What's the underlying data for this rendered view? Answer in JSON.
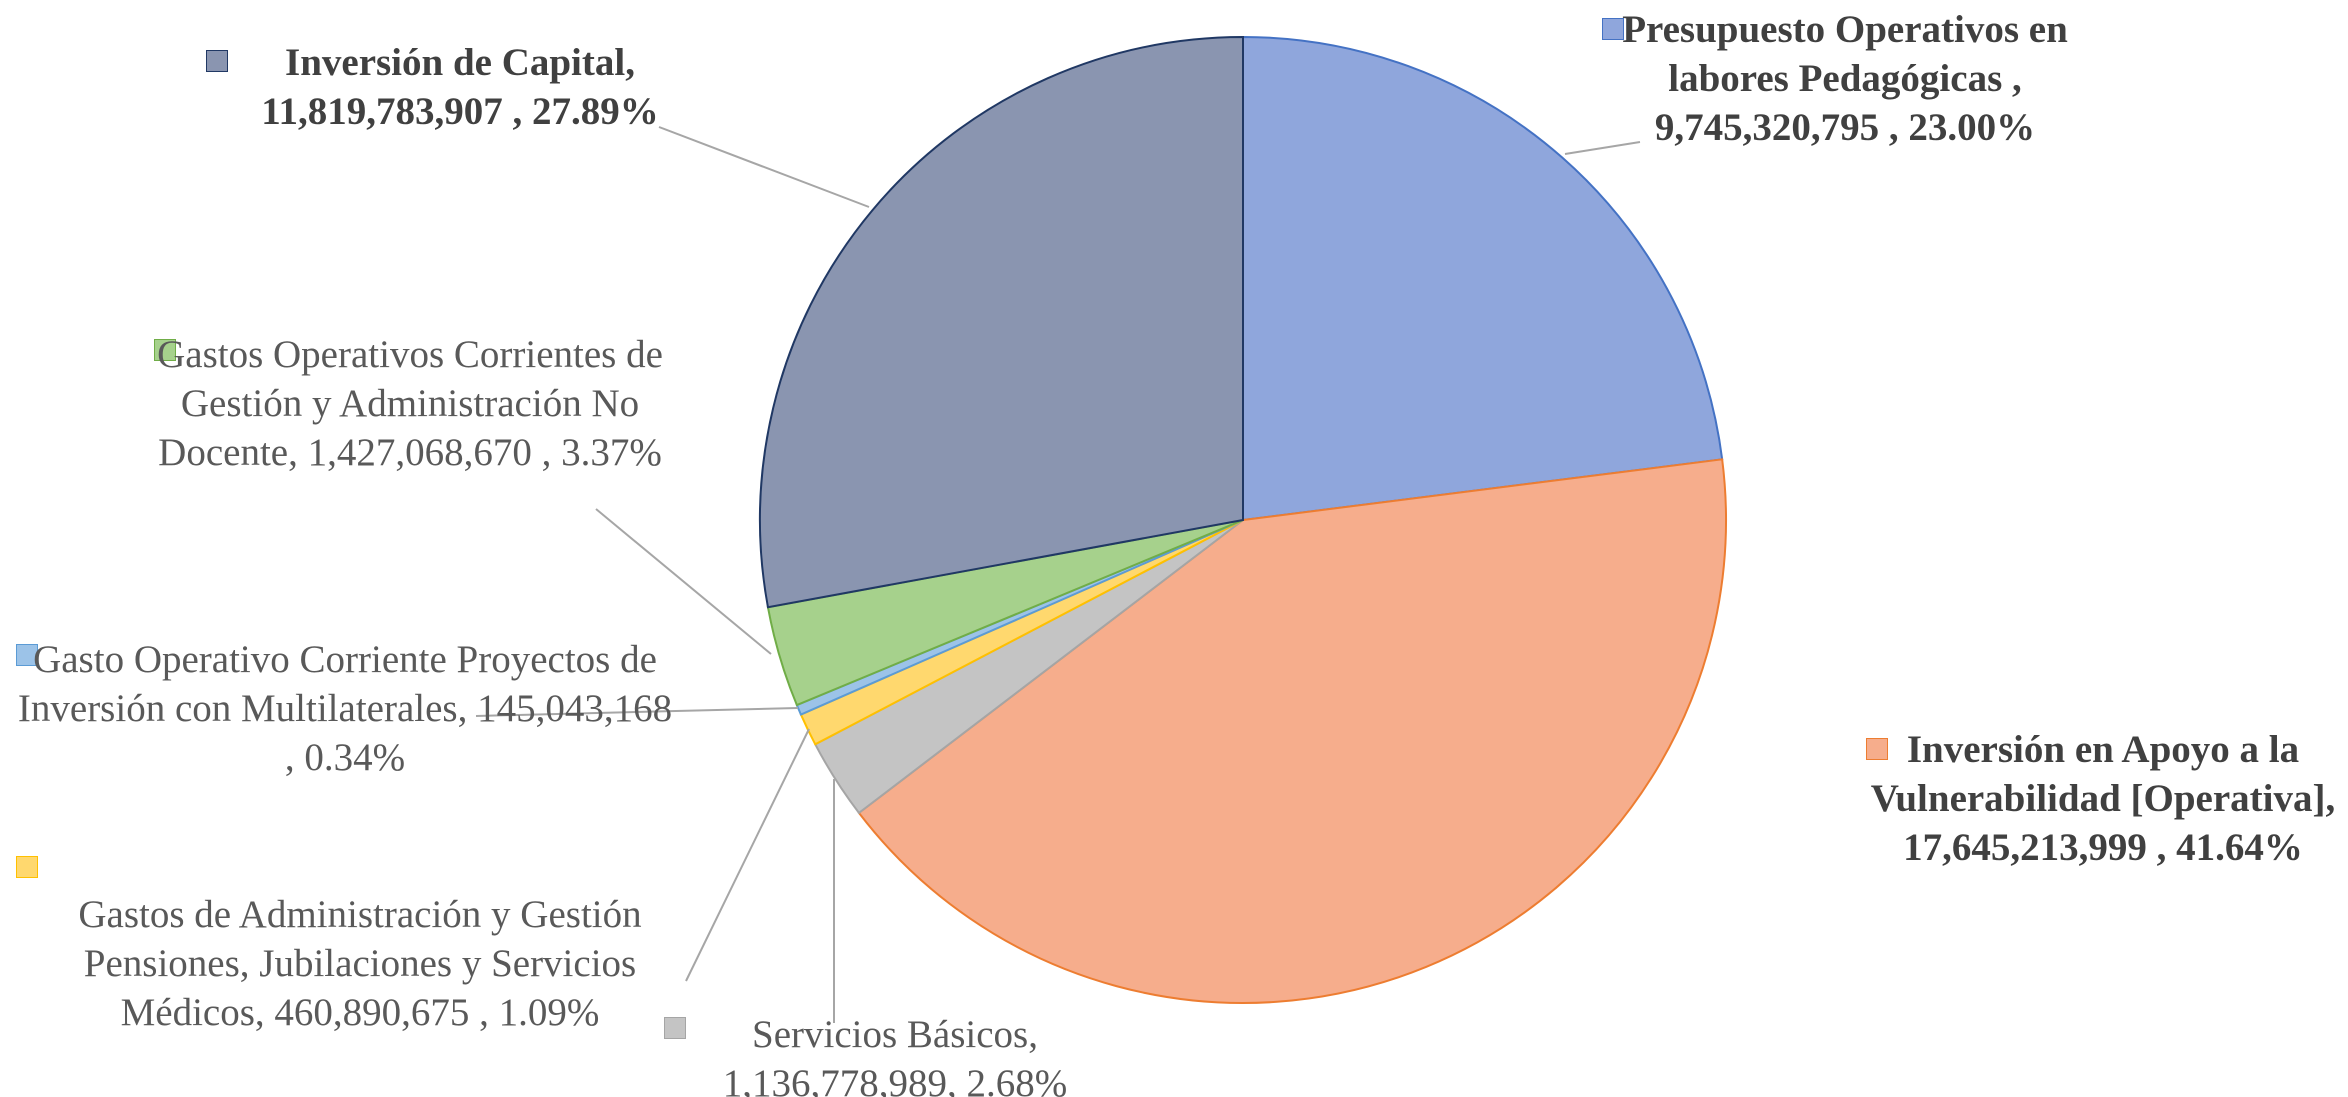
{
  "chart_data": {
    "type": "pie",
    "categories": [
      "Presupuesto Operativos en labores Pedagógicas ,",
      "Inversión en Apoyo a la Vulnerabilidad [Operativa],",
      "Servicios Básicos,",
      "Gastos de Administración y Gestión Pensiones, Jubilaciones y Servicios Médicos,",
      "Gasto Operativo Corriente Proyectos de Inversión con Multilaterales,",
      "Gastos Operativos Corrientes de Gestión y Administración No Docente,",
      "Inversión de Capital,"
    ],
    "values": [
      9745320795,
      17645213999,
      1136778989,
      460890675,
      145043168,
      1427068670,
      11819783907
    ],
    "value_labels": [
      "9,745,320,795 ,",
      "17,645,213,999 ,",
      "1,136,778,989,",
      "460,890,675 ,",
      "145,043,168 ,",
      "1,427,068,670 ,",
      "11,819,783,907 ,"
    ],
    "percentages": [
      23.0,
      41.64,
      2.68,
      1.09,
      0.34,
      3.37,
      27.89
    ],
    "percent_labels": [
      "23.00%",
      "41.64%",
      "2.68%",
      "1.09%",
      "0.34%",
      "3.37%",
      "27.89%"
    ],
    "colors": [
      "#8fa6dc",
      "#f6ad8c",
      "#c4c4c4",
      "#ffd86e",
      "#9cc3e8",
      "#a6d18c",
      "#8a95b0"
    ],
    "stroke_colors": [
      "#4472c4",
      "#ed7d31",
      "#a5a5a5",
      "#ffc000",
      "#5b9bd5",
      "#70ad47",
      "#203864"
    ]
  }
}
